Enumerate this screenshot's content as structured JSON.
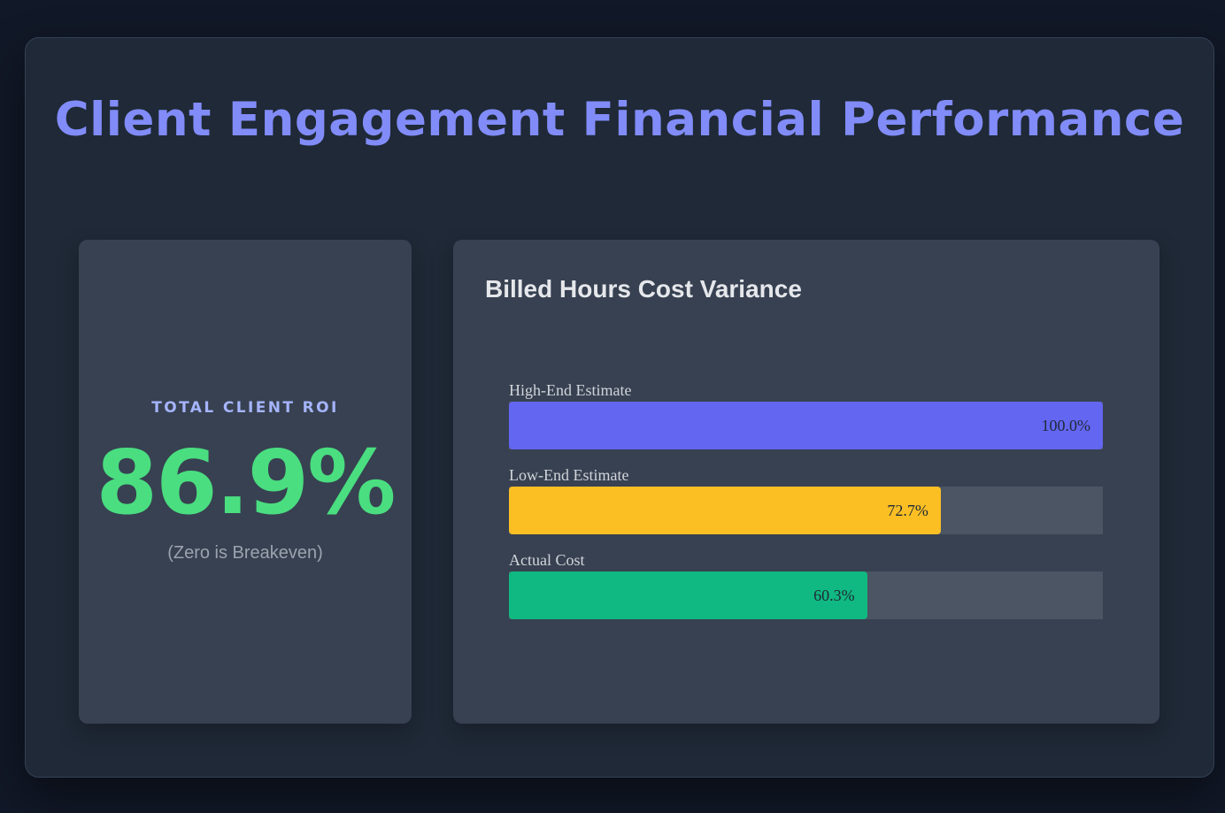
{
  "header": {
    "title": "Client Engagement Financial Performance"
  },
  "kpi": {
    "label": "TOTAL CLIENT ROI",
    "value": "86.9%",
    "note": "(Zero is Breakeven)",
    "value_color": "#4ade80"
  },
  "chart_data": {
    "type": "bar",
    "orientation": "horizontal",
    "title": "Billed Hours Cost Variance",
    "xlabel": "",
    "ylabel": "",
    "xlim": [
      0,
      100
    ],
    "grid": false,
    "legend": "none",
    "categories": [
      "High-End Estimate",
      "Low-End Estimate",
      "Actual Cost"
    ],
    "values": [
      100.0,
      72.7,
      60.3
    ],
    "value_labels": [
      "100.0%",
      "72.7%",
      "60.3%"
    ],
    "colors": [
      "#6366f1",
      "#fbbf24",
      "#10b981"
    ]
  }
}
